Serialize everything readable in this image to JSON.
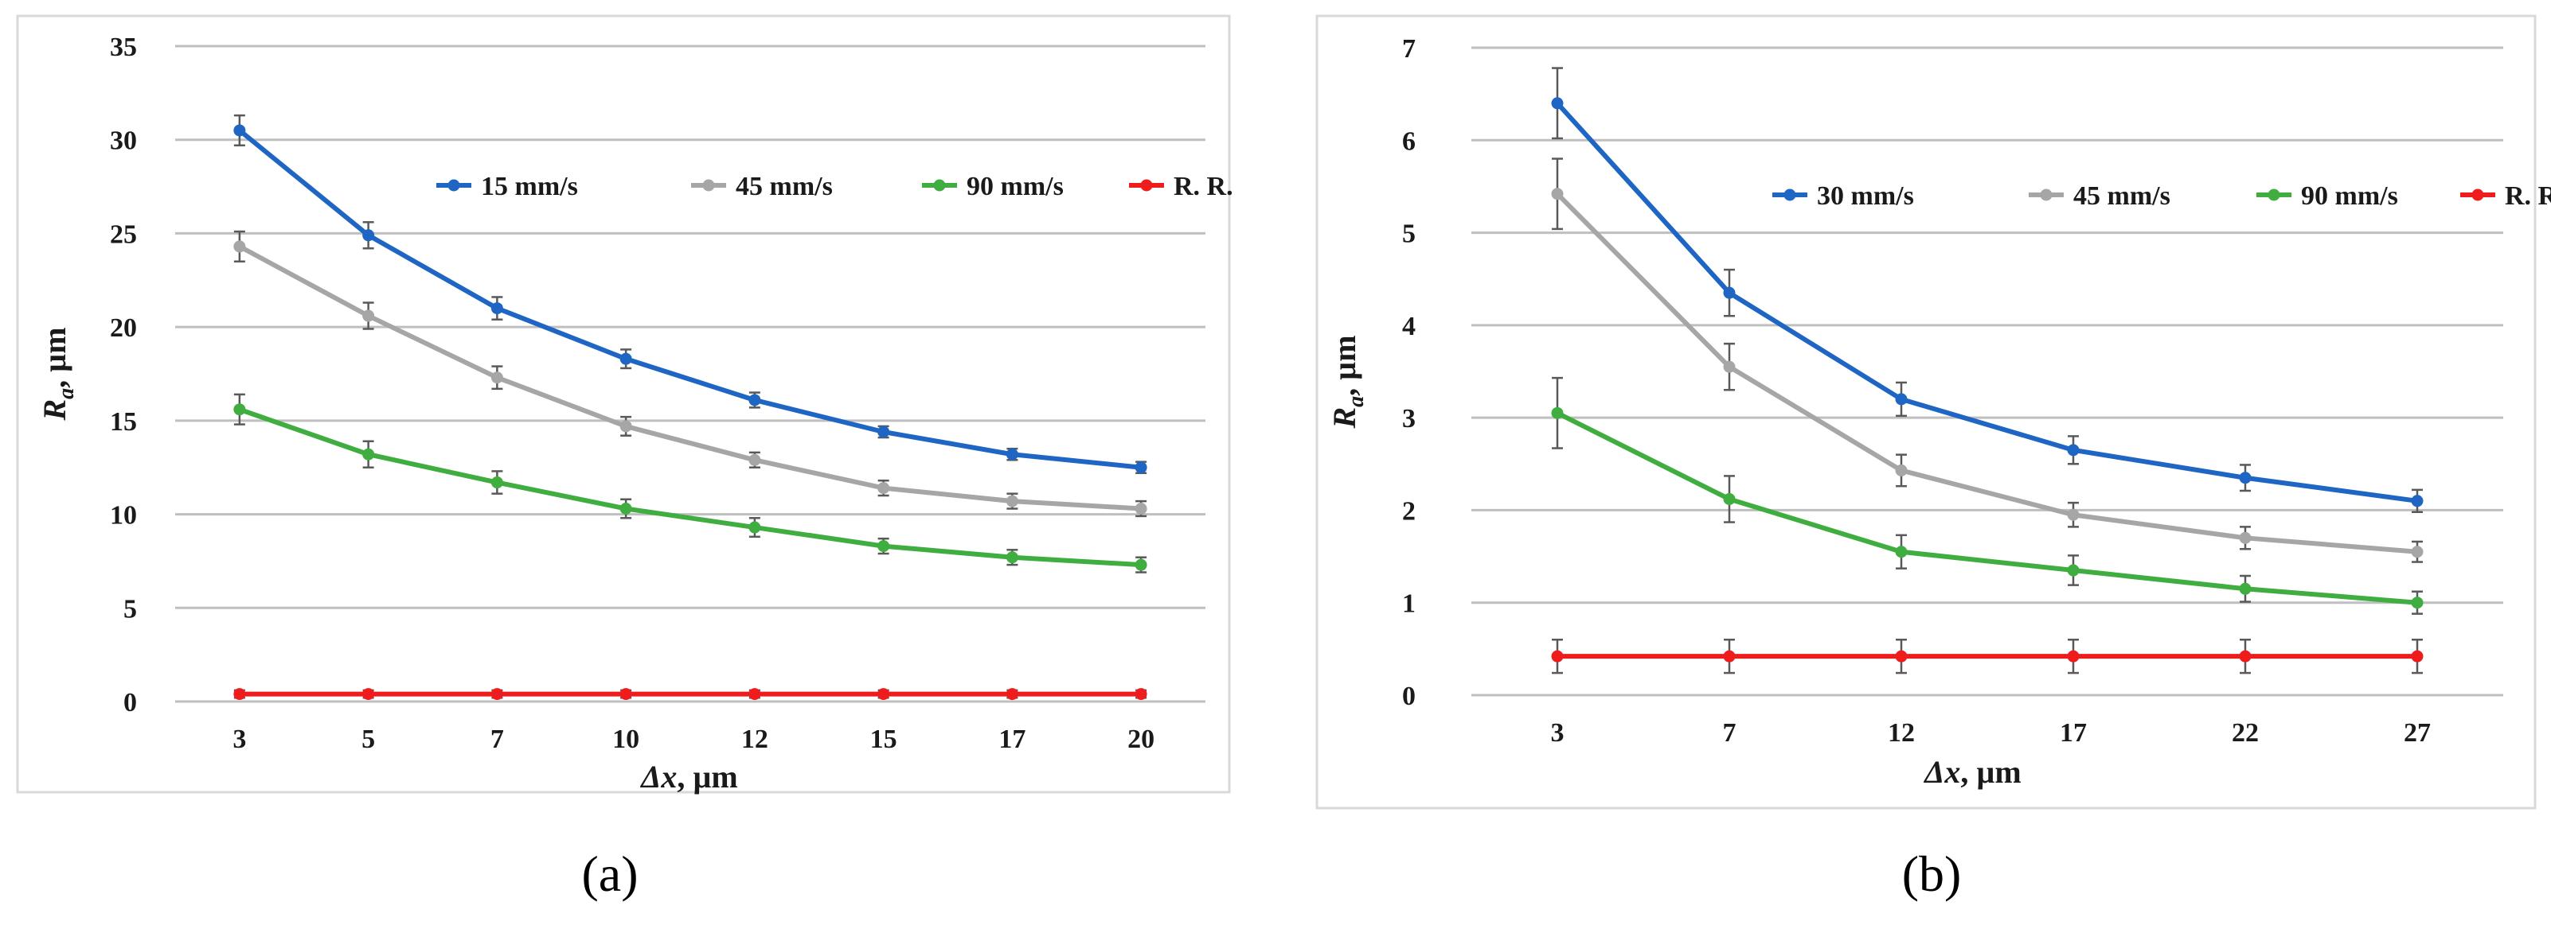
{
  "chart_data": [
    {
      "type": "line",
      "panel_label": "(a)",
      "title": "",
      "xlabel": "Δx, µm",
      "ylabel": "Ra, µm",
      "categories": [
        "3",
        "5",
        "7",
        "10",
        "12",
        "15",
        "17",
        "20"
      ],
      "ylim": [
        0,
        35
      ],
      "yticks": [
        0,
        5,
        10,
        15,
        20,
        25,
        30,
        35
      ],
      "grid": true,
      "legend_position": "top-right",
      "series": [
        {
          "name": "15 mm/s",
          "color": "#1f66c4",
          "values": [
            30.5,
            24.9,
            21.0,
            18.3,
            16.1,
            14.4,
            13.2,
            12.5
          ],
          "errors": [
            0.8,
            0.7,
            0.6,
            0.5,
            0.4,
            0.3,
            0.3,
            0.3
          ]
        },
        {
          "name": "45 mm/s",
          "color": "#a6a6a6",
          "values": [
            24.3,
            20.6,
            17.3,
            14.7,
            12.9,
            11.4,
            10.7,
            10.3
          ],
          "errors": [
            0.8,
            0.7,
            0.6,
            0.5,
            0.4,
            0.4,
            0.4,
            0.4
          ]
        },
        {
          "name": "90 mm/s",
          "color": "#3fad3f",
          "values": [
            15.6,
            13.2,
            11.7,
            10.3,
            9.3,
            8.3,
            7.7,
            7.3
          ],
          "errors": [
            0.8,
            0.7,
            0.6,
            0.5,
            0.5,
            0.4,
            0.4,
            0.4
          ]
        },
        {
          "name": "R. R.",
          "color": "#ee1c1c",
          "values": [
            0.4,
            0.4,
            0.4,
            0.4,
            0.4,
            0.4,
            0.4,
            0.4
          ],
          "errors": [
            0.2,
            0.2,
            0.2,
            0.2,
            0.2,
            0.2,
            0.2,
            0.2
          ]
        }
      ]
    },
    {
      "type": "line",
      "panel_label": "(b)",
      "title": "",
      "xlabel": "Δx, µm",
      "ylabel": "Ra, µm",
      "categories": [
        "3",
        "7",
        "12",
        "17",
        "22",
        "27"
      ],
      "ylim": [
        0,
        7
      ],
      "yticks": [
        0,
        1,
        2,
        3,
        4,
        5,
        6,
        7
      ],
      "grid": true,
      "legend_position": "top-right",
      "series": [
        {
          "name": "30 mm/s",
          "color": "#1f66c4",
          "values": [
            6.4,
            4.35,
            3.2,
            2.65,
            2.35,
            2.1
          ],
          "errors": [
            0.38,
            0.25,
            0.18,
            0.15,
            0.14,
            0.12
          ]
        },
        {
          "name": "45 mm/s",
          "color": "#a6a6a6",
          "values": [
            5.42,
            3.55,
            2.43,
            1.95,
            1.7,
            1.55
          ],
          "errors": [
            0.38,
            0.25,
            0.17,
            0.13,
            0.12,
            0.11
          ]
        },
        {
          "name": "90 mm/s",
          "color": "#3fad3f",
          "values": [
            3.05,
            2.12,
            1.55,
            1.35,
            1.15,
            1.0
          ],
          "errors": [
            0.38,
            0.25,
            0.18,
            0.16,
            0.14,
            0.12
          ]
        },
        {
          "name": "R. R.",
          "color": "#ee1c1c",
          "values": [
            0.42,
            0.42,
            0.42,
            0.42,
            0.42,
            0.42
          ],
          "errors": [
            0.18,
            0.18,
            0.18,
            0.18,
            0.18,
            0.18
          ]
        }
      ]
    }
  ]
}
